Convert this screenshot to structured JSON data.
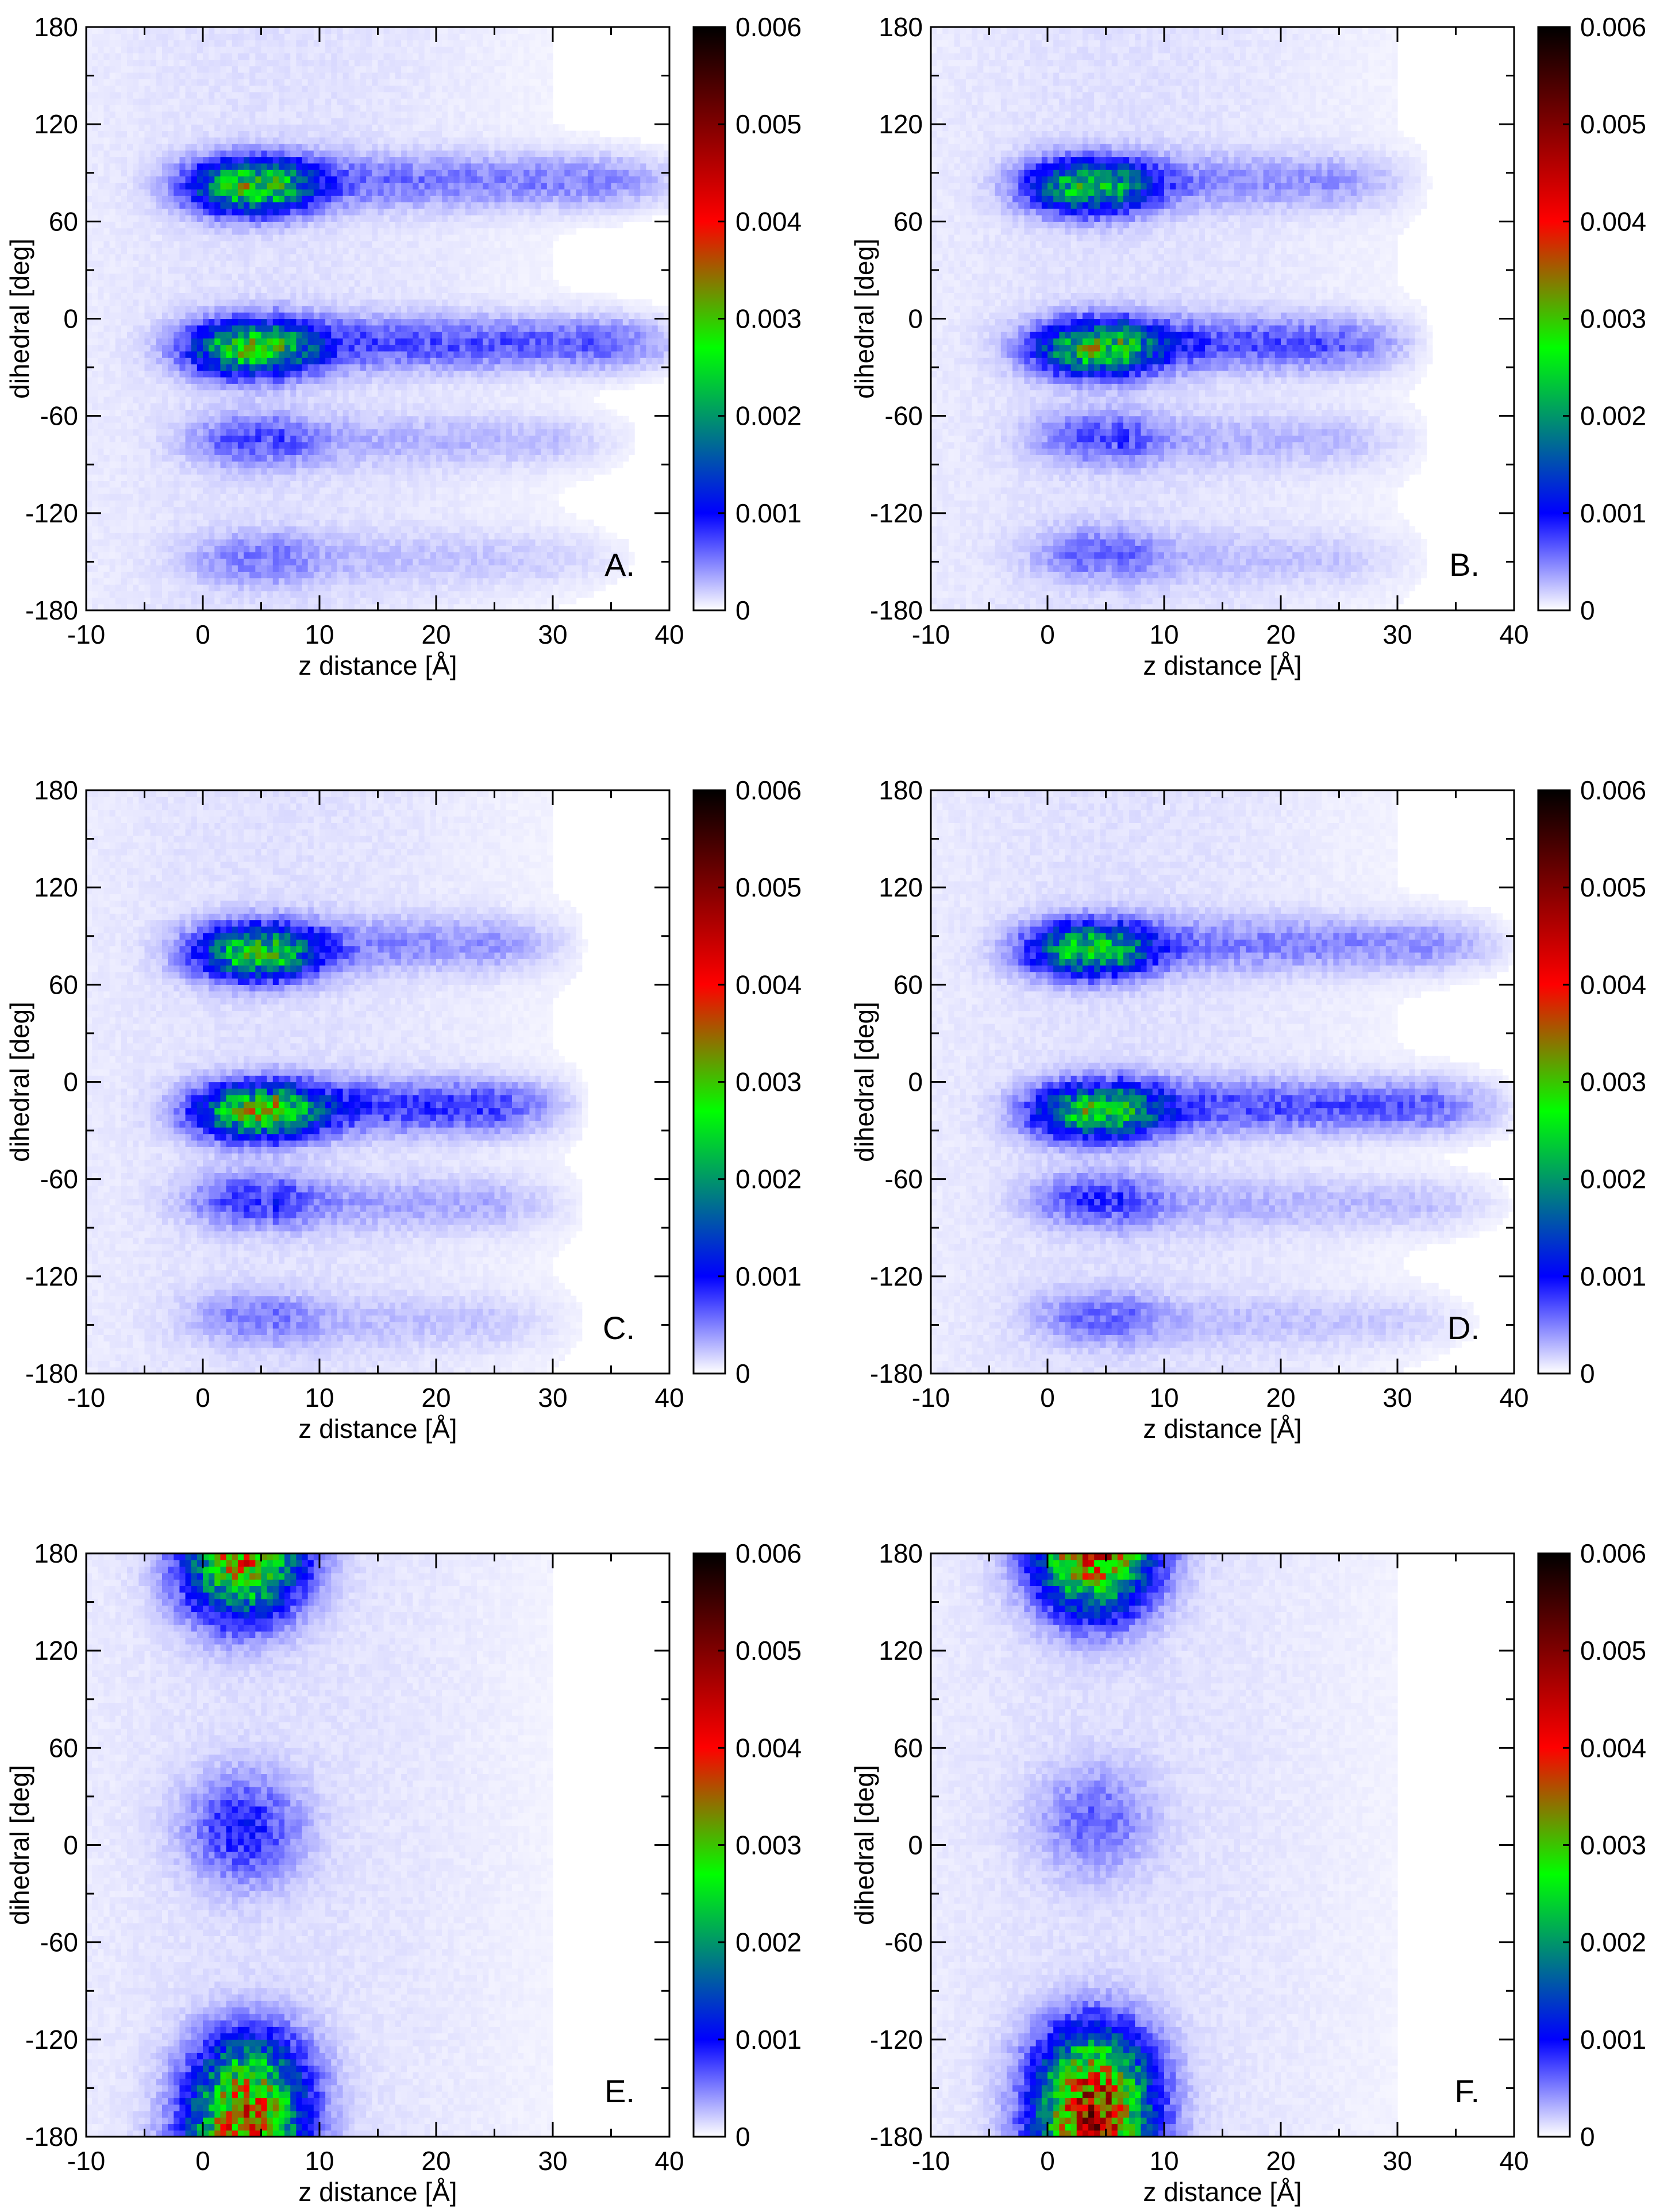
{
  "figure": {
    "colors": {
      "colormap": [
        "#ffffff",
        "#0000ff",
        "#00ff00",
        "#ff0000",
        "#000000"
      ],
      "colormap_stops": [
        0,
        0.001,
        0.0027,
        0.004,
        0.006
      ],
      "axis": "#000000",
      "background": "#ffffff"
    }
  },
  "chart_data": [
    {
      "type": "heatmap",
      "panel_label": "A.",
      "xlabel": "z distance [Å]",
      "ylabel": "dihedral [deg]",
      "xlim": [
        -10,
        40
      ],
      "ylim": [
        -180,
        180
      ],
      "x_ticks": [
        "-10",
        "0",
        "10",
        "20",
        "30",
        "40"
      ],
      "y_ticks": [
        "-180",
        "-120",
        "-60",
        "0",
        "60",
        "120",
        "180"
      ],
      "colorbar": {
        "range": [
          0,
          0.006
        ],
        "ticks": [
          "0",
          "0.001",
          "0.002",
          "0.003",
          "0.004",
          "0.005",
          "0.006"
        ]
      },
      "density_peaks": [
        {
          "x": 4,
          "y": 82,
          "peak": 0.0027
        },
        {
          "x": 4,
          "y": -18,
          "peak": 0.0027
        },
        {
          "x": 4,
          "y": -75,
          "peak": 0.0006
        },
        {
          "x": 4,
          "y": -148,
          "peak": 0.0004
        }
      ],
      "tails": [
        {
          "y": 85,
          "x_from": 10,
          "x_to": 40,
          "level": 0.00045
        },
        {
          "y": -15,
          "x_from": 10,
          "x_to": 40,
          "level": 0.0006
        },
        {
          "y": -75,
          "x_from": 10,
          "x_to": 35,
          "level": 0.0002
        },
        {
          "y": -148,
          "x_from": 10,
          "x_to": 35,
          "level": 0.00015
        }
      ]
    },
    {
      "type": "heatmap",
      "panel_label": "B.",
      "xlabel": "z distance [Å]",
      "ylabel": "dihedral [deg]",
      "xlim": [
        -10,
        40
      ],
      "ylim": [
        -180,
        180
      ],
      "x_ticks": [
        "-10",
        "0",
        "10",
        "20",
        "30",
        "40"
      ],
      "y_ticks": [
        "-180",
        "-120",
        "-60",
        "0",
        "60",
        "120",
        "180"
      ],
      "colorbar": {
        "range": [
          0,
          0.006
        ],
        "ticks": [
          "0",
          "0.001",
          "0.002",
          "0.003",
          "0.004",
          "0.005",
          "0.006"
        ]
      },
      "density_peaks": [
        {
          "x": 3.5,
          "y": 82,
          "peak": 0.0024
        },
        {
          "x": 4,
          "y": -18,
          "peak": 0.0026
        },
        {
          "x": 4,
          "y": -73,
          "peak": 0.0006
        },
        {
          "x": 4,
          "y": -145,
          "peak": 0.0005
        }
      ],
      "tails": [
        {
          "y": 85,
          "x_from": 10,
          "x_to": 30,
          "level": 0.00035
        },
        {
          "y": -15,
          "x_from": 10,
          "x_to": 30,
          "level": 0.0006
        },
        {
          "y": -75,
          "x_from": 10,
          "x_to": 30,
          "level": 0.0002
        },
        {
          "y": -148,
          "x_from": 10,
          "x_to": 30,
          "level": 0.00015
        }
      ]
    },
    {
      "type": "heatmap",
      "panel_label": "C.",
      "xlabel": "z distance [Å]",
      "ylabel": "dihedral [deg]",
      "xlim": [
        -10,
        40
      ],
      "ylim": [
        -180,
        180
      ],
      "x_ticks": [
        "-10",
        "0",
        "10",
        "20",
        "30",
        "40"
      ],
      "y_ticks": [
        "-180",
        "-120",
        "-60",
        "0",
        "60",
        "120",
        "180"
      ],
      "colorbar": {
        "range": [
          0,
          0.006
        ],
        "ticks": [
          "0",
          "0.001",
          "0.002",
          "0.003",
          "0.004",
          "0.005",
          "0.006"
        ]
      },
      "density_peaks": [
        {
          "x": 4.5,
          "y": 80,
          "peak": 0.0026
        },
        {
          "x": 4.5,
          "y": -18,
          "peak": 0.0028
        },
        {
          "x": 4,
          "y": -73,
          "peak": 0.0007
        },
        {
          "x": 4,
          "y": -145,
          "peak": 0.0004
        }
      ],
      "tails": [
        {
          "y": 85,
          "x_from": 10,
          "x_to": 30,
          "level": 0.00035
        },
        {
          "y": -15,
          "x_from": 10,
          "x_to": 30,
          "level": 0.0007
        },
        {
          "y": -75,
          "x_from": 10,
          "x_to": 30,
          "level": 0.00025
        },
        {
          "y": -148,
          "x_from": 10,
          "x_to": 30,
          "level": 0.00015
        }
      ]
    },
    {
      "type": "heatmap",
      "panel_label": "D.",
      "xlabel": "z distance [Å]",
      "ylabel": "dihedral [deg]",
      "xlim": [
        -10,
        40
      ],
      "ylim": [
        -180,
        180
      ],
      "x_ticks": [
        "-10",
        "0",
        "10",
        "20",
        "30",
        "40"
      ],
      "y_ticks": [
        "-180",
        "-120",
        "-60",
        "0",
        "60",
        "120",
        "180"
      ],
      "colorbar": {
        "range": [
          0,
          0.006
        ],
        "ticks": [
          "0",
          "0.001",
          "0.002",
          "0.003",
          "0.004",
          "0.005",
          "0.006"
        ]
      },
      "density_peaks": [
        {
          "x": 3.5,
          "y": 82,
          "peak": 0.0024
        },
        {
          "x": 4,
          "y": -18,
          "peak": 0.0026
        },
        {
          "x": 4,
          "y": -73,
          "peak": 0.0007
        },
        {
          "x": 4,
          "y": -145,
          "peak": 0.0005
        }
      ],
      "tails": [
        {
          "y": 85,
          "x_from": 10,
          "x_to": 38,
          "level": 0.0004
        },
        {
          "y": -15,
          "x_from": 10,
          "x_to": 38,
          "level": 0.0006
        },
        {
          "y": -75,
          "x_from": 10,
          "x_to": 38,
          "level": 0.0002
        },
        {
          "y": -148,
          "x_from": 10,
          "x_to": 35,
          "level": 0.00015
        }
      ]
    },
    {
      "type": "heatmap",
      "panel_label": "E.",
      "xlabel": "z distance [Å]",
      "ylabel": "dihedral [deg]",
      "xlim": [
        -10,
        40
      ],
      "ylim": [
        -180,
        180
      ],
      "x_ticks": [
        "-10",
        "0",
        "10",
        "20",
        "30",
        "40"
      ],
      "y_ticks": [
        "-180",
        "-120",
        "-60",
        "0",
        "60",
        "120",
        "180"
      ],
      "colorbar": {
        "range": [
          0,
          0.006
        ],
        "ticks": [
          "0",
          "0.001",
          "0.002",
          "0.003",
          "0.004",
          "0.005",
          "0.006"
        ]
      },
      "density_peaks": [
        {
          "x": 3,
          "y": 168,
          "peak": 0.0017
        },
        {
          "x": 3.5,
          "y": 10,
          "peak": 0.0008
        },
        {
          "x": 4,
          "y": -145,
          "peak": 0.002
        },
        {
          "x": 4,
          "y": -175,
          "peak": 0.0016
        }
      ],
      "tails": []
    },
    {
      "type": "heatmap",
      "panel_label": "F.",
      "xlabel": "z distance [Å]",
      "ylabel": "dihedral [deg]",
      "xlim": [
        -10,
        40
      ],
      "ylim": [
        -180,
        180
      ],
      "x_ticks": [
        "-10",
        "0",
        "10",
        "20",
        "30",
        "40"
      ],
      "y_ticks": [
        "-180",
        "-120",
        "-60",
        "0",
        "60",
        "120",
        "180"
      ],
      "colorbar": {
        "range": [
          0,
          0.006
        ],
        "ticks": [
          "0",
          "0.001",
          "0.002",
          "0.003",
          "0.004",
          "0.005",
          "0.006"
        ]
      },
      "density_peaks": [
        {
          "x": 4,
          "y": 170,
          "peak": 0.0017
        },
        {
          "x": 4,
          "y": 15,
          "peak": 0.0005
        },
        {
          "x": 4,
          "y": -140,
          "peak": 0.0024
        },
        {
          "x": 4,
          "y": -172,
          "peak": 0.0022
        }
      ],
      "tails": []
    }
  ]
}
